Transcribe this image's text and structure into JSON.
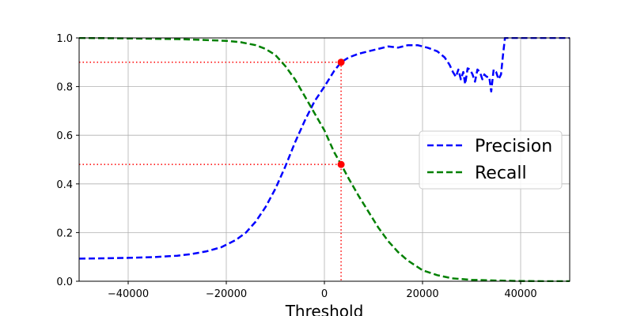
{
  "chart_data": {
    "type": "line",
    "xlabel": "Threshold",
    "ylabel": "",
    "xlim": [
      -50000,
      50000
    ],
    "ylim": [
      0,
      1
    ],
    "xticks": [
      -40000,
      -20000,
      0,
      20000,
      40000
    ],
    "xtick_labels": [
      "−40000",
      "−20000",
      "0",
      "20000",
      "40000"
    ],
    "yticks": [
      0,
      0.2,
      0.4,
      0.6,
      0.8,
      1.0
    ],
    "ytick_labels": [
      "0.0",
      "0.2",
      "0.4",
      "0.6",
      "0.8",
      "1.0"
    ],
    "grid": true,
    "legend_position": "center-right",
    "series": [
      {
        "name": "Precision",
        "color": "#0000ff",
        "style": "dashed",
        "x": [
          -50000,
          -45000,
          -40000,
          -35000,
          -30000,
          -27000,
          -24000,
          -21000,
          -18000,
          -16000,
          -14000,
          -12000,
          -10000,
          -8000,
          -6000,
          -4000,
          -2000,
          0,
          2000,
          3400,
          5000,
          7000,
          9000,
          11000,
          13000,
          15000,
          17000,
          19000,
          21000,
          23000,
          24500,
          25500,
          26200,
          26800,
          27300,
          27800,
          28300,
          28700,
          29200,
          29700,
          30200,
          30700,
          31200,
          31700,
          32200,
          32600,
          33100,
          33600,
          34000,
          34500,
          35000,
          35500,
          36000,
          36400,
          36800,
          37200,
          37600,
          40000,
          45000,
          50000
        ],
        "y": [
          0.093,
          0.094,
          0.096,
          0.099,
          0.105,
          0.112,
          0.123,
          0.14,
          0.17,
          0.2,
          0.245,
          0.305,
          0.38,
          0.47,
          0.57,
          0.66,
          0.74,
          0.8,
          0.865,
          0.9,
          0.92,
          0.935,
          0.945,
          0.955,
          0.965,
          0.96,
          0.97,
          0.97,
          0.96,
          0.945,
          0.92,
          0.89,
          0.86,
          0.84,
          0.87,
          0.83,
          0.86,
          0.81,
          0.875,
          0.87,
          0.85,
          0.82,
          0.87,
          0.86,
          0.83,
          0.85,
          0.84,
          0.84,
          0.78,
          0.87,
          0.86,
          0.83,
          0.85,
          0.93,
          1.0,
          1.0,
          1.0,
          1.0,
          1.0,
          1.0
        ]
      },
      {
        "name": "Recall",
        "color": "#008000",
        "style": "dashed",
        "x": [
          -50000,
          -40000,
          -30000,
          -25000,
          -20000,
          -17000,
          -14000,
          -12000,
          -10000,
          -8000,
          -6000,
          -4000,
          -2000,
          0,
          2000,
          3400,
          5000,
          7000,
          9000,
          11000,
          13000,
          15000,
          17000,
          20000,
          23000,
          26000,
          30000,
          35000,
          40000,
          45000,
          50000
        ],
        "y": [
          1.0,
          0.998,
          0.995,
          0.992,
          0.988,
          0.982,
          0.97,
          0.955,
          0.93,
          0.885,
          0.83,
          0.76,
          0.69,
          0.62,
          0.53,
          0.48,
          0.42,
          0.35,
          0.285,
          0.22,
          0.165,
          0.12,
          0.085,
          0.045,
          0.025,
          0.012,
          0.006,
          0.003,
          0.001,
          0.0,
          0.0
        ]
      }
    ],
    "annotations": {
      "threshold_x": 3400,
      "precision_y": 0.9,
      "recall_y": 0.48,
      "line_color": "#ff0000",
      "point_color": "#ff0000"
    },
    "grid_color": "#b0b0b0"
  }
}
